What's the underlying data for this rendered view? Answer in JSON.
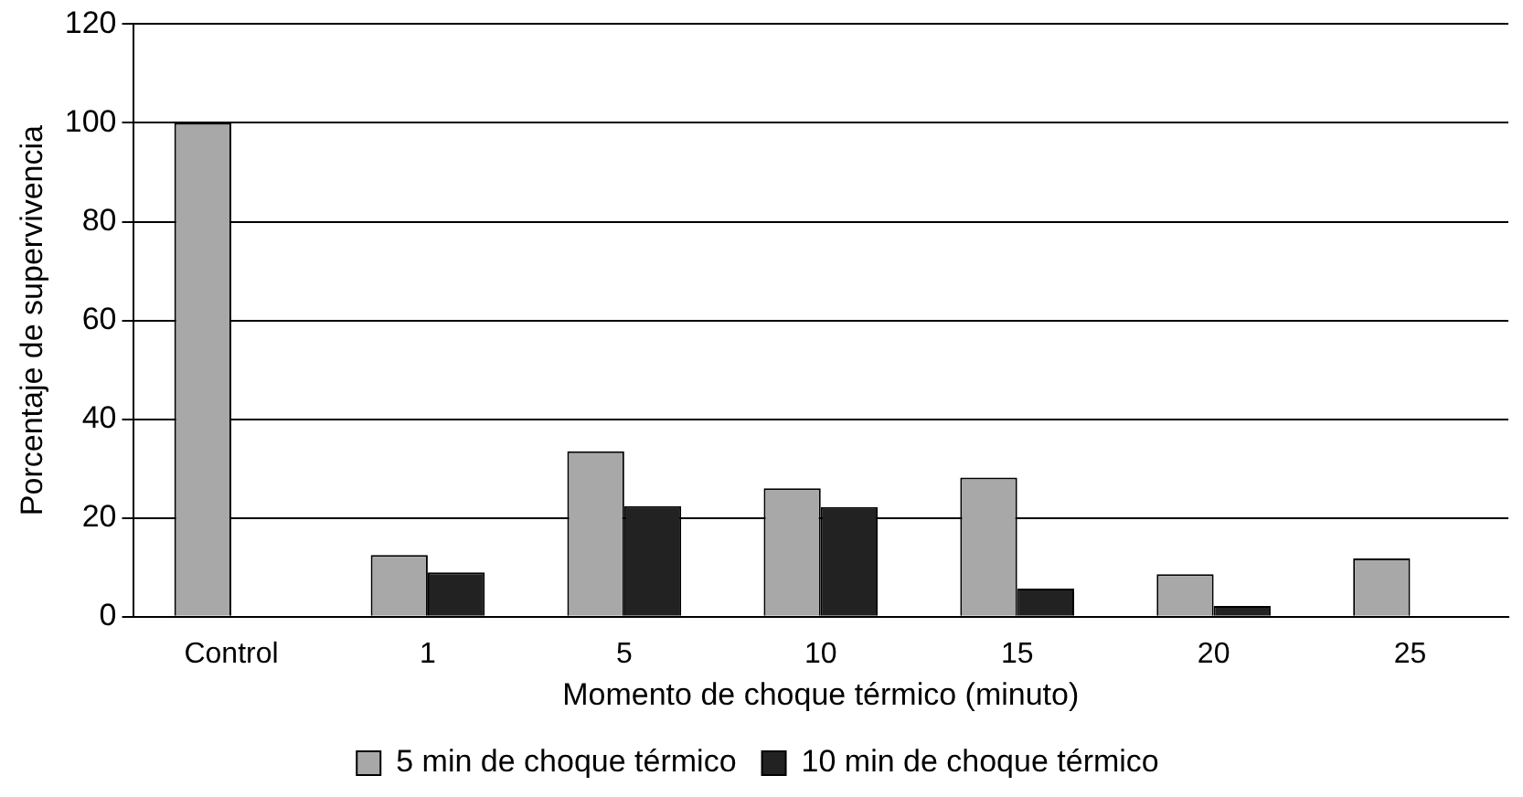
{
  "chart_data": {
    "type": "bar",
    "xlabel": "Momento de choque térmico (minuto)",
    "ylabel": "Porcentaje de supervivencia",
    "categories": [
      "Control",
      "1",
      "5",
      "10",
      "15",
      "20",
      "25"
    ],
    "series": [
      {
        "name": "5 min de choque térmico",
        "color": "#a8a8a8",
        "values": [
          100,
          12.5,
          33.5,
          26,
          28.2,
          8.6,
          11.8
        ]
      },
      {
        "name": "10 min de choque térmico",
        "color": "#222222",
        "values": [
          null,
          9,
          22.4,
          22.2,
          5.7,
          2.2,
          null
        ]
      }
    ],
    "ylim": [
      0,
      120
    ],
    "yticks": [
      0,
      20,
      40,
      60,
      80,
      100,
      120
    ],
    "grid": "y",
    "legend": "bottom"
  }
}
